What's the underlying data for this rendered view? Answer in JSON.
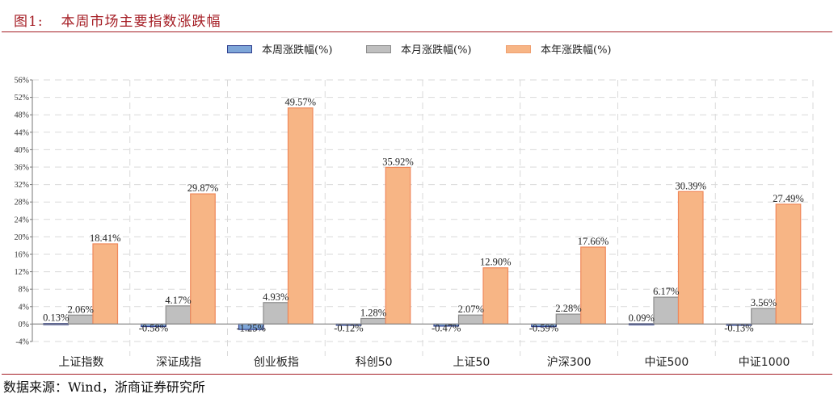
{
  "header": {
    "figure_number": "图1:",
    "title": "本周市场主要指数涨跌幅"
  },
  "footer": {
    "source": "数据来源：Wind，浙商证券研究所"
  },
  "legend": {
    "items": [
      {
        "label": "本周涨跌幅(%)",
        "fill": "#7ea6d8",
        "stroke": "#2f3f8f"
      },
      {
        "label": "本月涨跌幅(%)",
        "fill": "#bfbfbf",
        "stroke": "#8c8c8c"
      },
      {
        "label": "本年涨跌幅(%)",
        "fill": "#f7b585",
        "stroke": "#f0885a"
      }
    ]
  },
  "chart_data": {
    "type": "bar",
    "title": "本周市场主要指数涨跌幅",
    "xlabel": "",
    "ylabel": "",
    "ylim": [
      -4,
      56
    ],
    "yticks": [
      -4,
      0,
      4,
      8,
      12,
      16,
      20,
      24,
      28,
      32,
      36,
      40,
      44,
      48,
      52,
      56
    ],
    "ytick_labels": [
      "-4%",
      "0%",
      "4%",
      "8%",
      "12%",
      "16%",
      "20%",
      "24%",
      "28%",
      "32%",
      "36%",
      "40%",
      "44%",
      "48%",
      "52%",
      "56%"
    ],
    "grid": true,
    "legend_position": "top",
    "categories": [
      "上证指数",
      "深证成指",
      "创业板指",
      "科创50",
      "上证50",
      "沪深300",
      "中证500",
      "中证1000"
    ],
    "series": [
      {
        "name": "本周涨跌幅(%)",
        "color": "#7ea6d8",
        "values": [
          0.13,
          -0.58,
          -1.25,
          -0.12,
          -0.47,
          -0.59,
          0.09,
          -0.13
        ],
        "labels": [
          "0.13%",
          "-0.58%",
          "-1.25%",
          "-0.12%",
          "-0.47%",
          "-0.59%",
          "0.09%",
          "-0.13%"
        ]
      },
      {
        "name": "本月涨跌幅(%)",
        "color": "#bfbfbf",
        "values": [
          2.06,
          4.17,
          4.93,
          1.28,
          2.07,
          2.28,
          6.17,
          3.56
        ],
        "labels": [
          "2.06%",
          "4.17%",
          "4.93%",
          "1.28%",
          "2.07%",
          "2.28%",
          "6.17%",
          "3.56%"
        ]
      },
      {
        "name": "本年涨跌幅(%)",
        "color": "#f7b585",
        "values": [
          18.41,
          29.87,
          49.57,
          35.92,
          12.9,
          17.66,
          30.39,
          27.49
        ],
        "labels": [
          "18.41%",
          "29.87%",
          "49.57%",
          "35.92%",
          "12.90%",
          "17.66%",
          "30.39%",
          "27.49%"
        ]
      }
    ]
  }
}
